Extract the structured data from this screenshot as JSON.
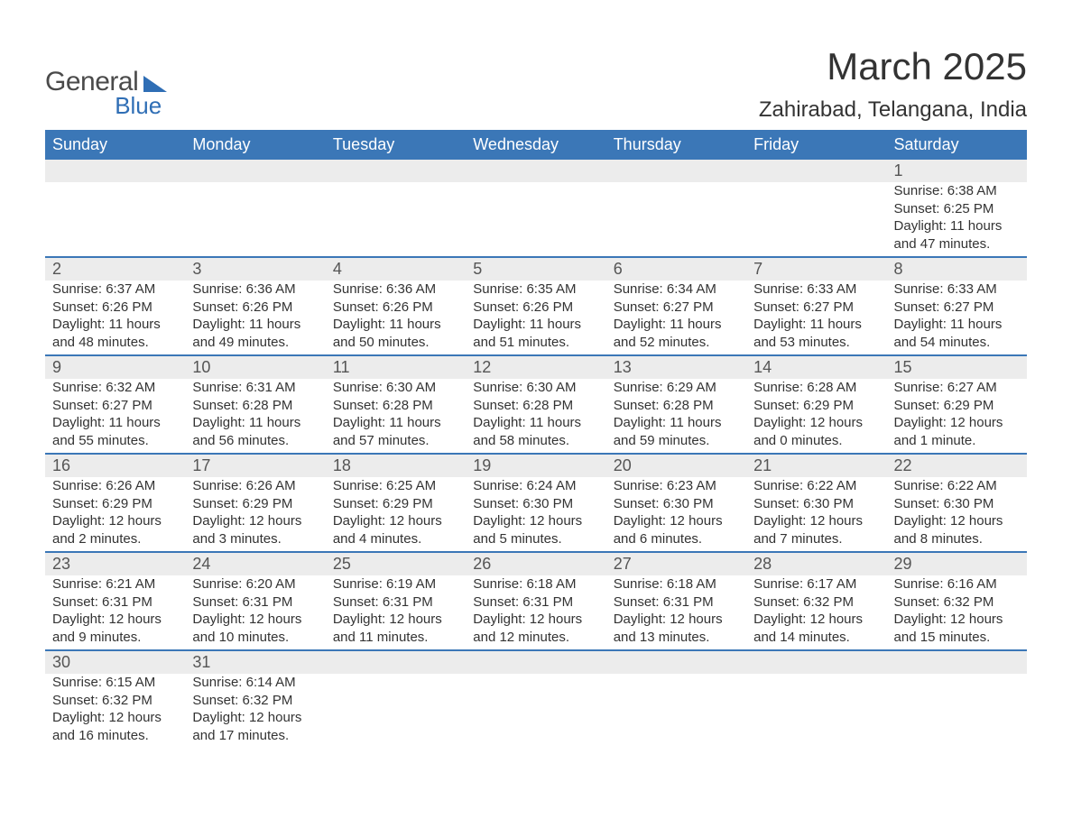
{
  "logo": {
    "text_general": "General",
    "text_blue": "Blue",
    "shape_color": "#2f6eb5"
  },
  "title": "March 2025",
  "subtitle": "Zahirabad, Telangana, India",
  "colors": {
    "header_bg": "#3b77b7",
    "header_text": "#ffffff",
    "daynum_bg": "#ececec",
    "week_border": "#3b77b7",
    "body_text": "#333333",
    "daynum_text": "#555555",
    "page_bg": "#ffffff"
  },
  "typography": {
    "title_fontsize": 42,
    "subtitle_fontsize": 24,
    "header_fontsize": 18,
    "daynum_fontsize": 18,
    "cell_fontsize": 15,
    "font_family": "Arial, Helvetica, sans-serif"
  },
  "calendar": {
    "type": "table",
    "day_headers": [
      "Sunday",
      "Monday",
      "Tuesday",
      "Wednesday",
      "Thursday",
      "Friday",
      "Saturday"
    ],
    "weeks": [
      [
        null,
        null,
        null,
        null,
        null,
        null,
        {
          "day": "1",
          "sunrise": "Sunrise: 6:38 AM",
          "sunset": "Sunset: 6:25 PM",
          "daylight1": "Daylight: 11 hours",
          "daylight2": "and 47 minutes."
        }
      ],
      [
        {
          "day": "2",
          "sunrise": "Sunrise: 6:37 AM",
          "sunset": "Sunset: 6:26 PM",
          "daylight1": "Daylight: 11 hours",
          "daylight2": "and 48 minutes."
        },
        {
          "day": "3",
          "sunrise": "Sunrise: 6:36 AM",
          "sunset": "Sunset: 6:26 PM",
          "daylight1": "Daylight: 11 hours",
          "daylight2": "and 49 minutes."
        },
        {
          "day": "4",
          "sunrise": "Sunrise: 6:36 AM",
          "sunset": "Sunset: 6:26 PM",
          "daylight1": "Daylight: 11 hours",
          "daylight2": "and 50 minutes."
        },
        {
          "day": "5",
          "sunrise": "Sunrise: 6:35 AM",
          "sunset": "Sunset: 6:26 PM",
          "daylight1": "Daylight: 11 hours",
          "daylight2": "and 51 minutes."
        },
        {
          "day": "6",
          "sunrise": "Sunrise: 6:34 AM",
          "sunset": "Sunset: 6:27 PM",
          "daylight1": "Daylight: 11 hours",
          "daylight2": "and 52 minutes."
        },
        {
          "day": "7",
          "sunrise": "Sunrise: 6:33 AM",
          "sunset": "Sunset: 6:27 PM",
          "daylight1": "Daylight: 11 hours",
          "daylight2": "and 53 minutes."
        },
        {
          "day": "8",
          "sunrise": "Sunrise: 6:33 AM",
          "sunset": "Sunset: 6:27 PM",
          "daylight1": "Daylight: 11 hours",
          "daylight2": "and 54 minutes."
        }
      ],
      [
        {
          "day": "9",
          "sunrise": "Sunrise: 6:32 AM",
          "sunset": "Sunset: 6:27 PM",
          "daylight1": "Daylight: 11 hours",
          "daylight2": "and 55 minutes."
        },
        {
          "day": "10",
          "sunrise": "Sunrise: 6:31 AM",
          "sunset": "Sunset: 6:28 PM",
          "daylight1": "Daylight: 11 hours",
          "daylight2": "and 56 minutes."
        },
        {
          "day": "11",
          "sunrise": "Sunrise: 6:30 AM",
          "sunset": "Sunset: 6:28 PM",
          "daylight1": "Daylight: 11 hours",
          "daylight2": "and 57 minutes."
        },
        {
          "day": "12",
          "sunrise": "Sunrise: 6:30 AM",
          "sunset": "Sunset: 6:28 PM",
          "daylight1": "Daylight: 11 hours",
          "daylight2": "and 58 minutes."
        },
        {
          "day": "13",
          "sunrise": "Sunrise: 6:29 AM",
          "sunset": "Sunset: 6:28 PM",
          "daylight1": "Daylight: 11 hours",
          "daylight2": "and 59 minutes."
        },
        {
          "day": "14",
          "sunrise": "Sunrise: 6:28 AM",
          "sunset": "Sunset: 6:29 PM",
          "daylight1": "Daylight: 12 hours",
          "daylight2": "and 0 minutes."
        },
        {
          "day": "15",
          "sunrise": "Sunrise: 6:27 AM",
          "sunset": "Sunset: 6:29 PM",
          "daylight1": "Daylight: 12 hours",
          "daylight2": "and 1 minute."
        }
      ],
      [
        {
          "day": "16",
          "sunrise": "Sunrise: 6:26 AM",
          "sunset": "Sunset: 6:29 PM",
          "daylight1": "Daylight: 12 hours",
          "daylight2": "and 2 minutes."
        },
        {
          "day": "17",
          "sunrise": "Sunrise: 6:26 AM",
          "sunset": "Sunset: 6:29 PM",
          "daylight1": "Daylight: 12 hours",
          "daylight2": "and 3 minutes."
        },
        {
          "day": "18",
          "sunrise": "Sunrise: 6:25 AM",
          "sunset": "Sunset: 6:29 PM",
          "daylight1": "Daylight: 12 hours",
          "daylight2": "and 4 minutes."
        },
        {
          "day": "19",
          "sunrise": "Sunrise: 6:24 AM",
          "sunset": "Sunset: 6:30 PM",
          "daylight1": "Daylight: 12 hours",
          "daylight2": "and 5 minutes."
        },
        {
          "day": "20",
          "sunrise": "Sunrise: 6:23 AM",
          "sunset": "Sunset: 6:30 PM",
          "daylight1": "Daylight: 12 hours",
          "daylight2": "and 6 minutes."
        },
        {
          "day": "21",
          "sunrise": "Sunrise: 6:22 AM",
          "sunset": "Sunset: 6:30 PM",
          "daylight1": "Daylight: 12 hours",
          "daylight2": "and 7 minutes."
        },
        {
          "day": "22",
          "sunrise": "Sunrise: 6:22 AM",
          "sunset": "Sunset: 6:30 PM",
          "daylight1": "Daylight: 12 hours",
          "daylight2": "and 8 minutes."
        }
      ],
      [
        {
          "day": "23",
          "sunrise": "Sunrise: 6:21 AM",
          "sunset": "Sunset: 6:31 PM",
          "daylight1": "Daylight: 12 hours",
          "daylight2": "and 9 minutes."
        },
        {
          "day": "24",
          "sunrise": "Sunrise: 6:20 AM",
          "sunset": "Sunset: 6:31 PM",
          "daylight1": "Daylight: 12 hours",
          "daylight2": "and 10 minutes."
        },
        {
          "day": "25",
          "sunrise": "Sunrise: 6:19 AM",
          "sunset": "Sunset: 6:31 PM",
          "daylight1": "Daylight: 12 hours",
          "daylight2": "and 11 minutes."
        },
        {
          "day": "26",
          "sunrise": "Sunrise: 6:18 AM",
          "sunset": "Sunset: 6:31 PM",
          "daylight1": "Daylight: 12 hours",
          "daylight2": "and 12 minutes."
        },
        {
          "day": "27",
          "sunrise": "Sunrise: 6:18 AM",
          "sunset": "Sunset: 6:31 PM",
          "daylight1": "Daylight: 12 hours",
          "daylight2": "and 13 minutes."
        },
        {
          "day": "28",
          "sunrise": "Sunrise: 6:17 AM",
          "sunset": "Sunset: 6:32 PM",
          "daylight1": "Daylight: 12 hours",
          "daylight2": "and 14 minutes."
        },
        {
          "day": "29",
          "sunrise": "Sunrise: 6:16 AM",
          "sunset": "Sunset: 6:32 PM",
          "daylight1": "Daylight: 12 hours",
          "daylight2": "and 15 minutes."
        }
      ],
      [
        {
          "day": "30",
          "sunrise": "Sunrise: 6:15 AM",
          "sunset": "Sunset: 6:32 PM",
          "daylight1": "Daylight: 12 hours",
          "daylight2": "and 16 minutes."
        },
        {
          "day": "31",
          "sunrise": "Sunrise: 6:14 AM",
          "sunset": "Sunset: 6:32 PM",
          "daylight1": "Daylight: 12 hours",
          "daylight2": "and 17 minutes."
        },
        null,
        null,
        null,
        null,
        null
      ]
    ]
  }
}
